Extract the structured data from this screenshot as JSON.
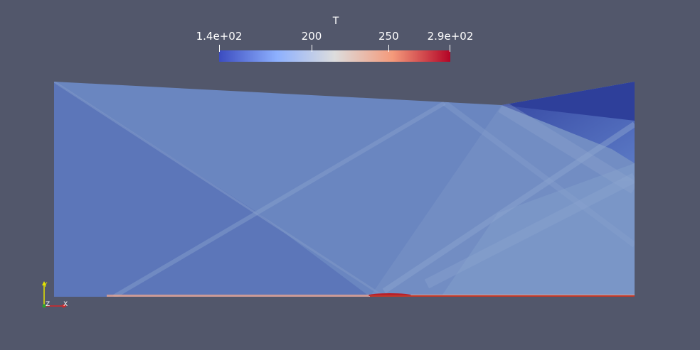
{
  "colorbar": {
    "title": "T",
    "ticks": [
      {
        "label": "1.4e+02",
        "value": 140
      },
      {
        "label": "200",
        "value": 200
      },
      {
        "label": "250",
        "value": 250
      },
      {
        "label": "2.9e+02",
        "value": 290
      }
    ],
    "range": [
      140,
      290
    ],
    "colormap_stops": [
      "#3b4cc0",
      "#8db0fe",
      "#dddddd",
      "#f49a7b",
      "#b40426"
    ]
  },
  "orientation_axes": {
    "x_label": "X",
    "y_label": "Y",
    "z_label": "Z",
    "x_color": "#d62728",
    "y_color": "#e5e500",
    "z_color": "#2ca02c"
  },
  "colors": {
    "background": "#52576b"
  }
}
